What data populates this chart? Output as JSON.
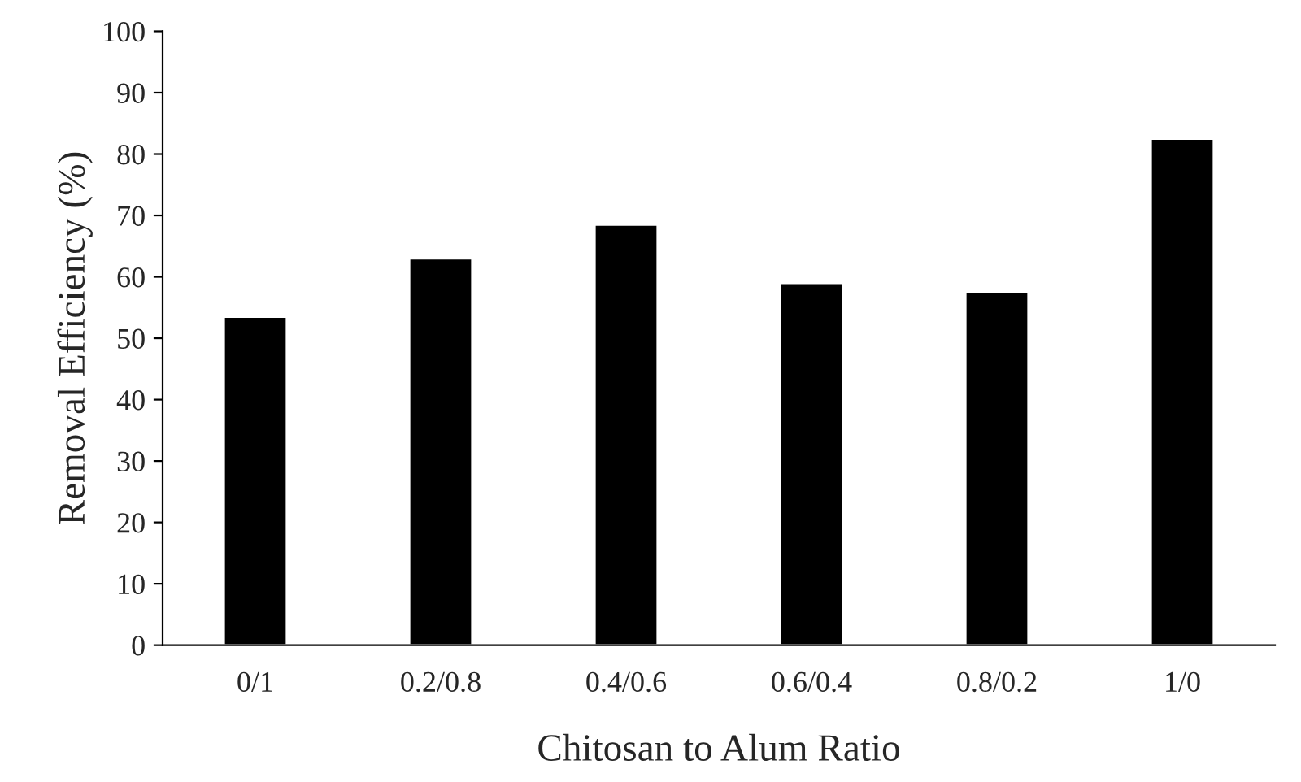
{
  "chart_data": {
    "type": "bar",
    "xlabel": "Chitosan to Alum Ratio",
    "ylabel": "Removal Efficiency (%)",
    "categories": [
      "0/1",
      "0.2/0.8",
      "0.4/0.6",
      "0.6/0.4",
      "0.8/0.2",
      "1/0"
    ],
    "values": [
      53.5,
      63,
      68.5,
      59,
      57.5,
      82.5
    ],
    "color": "#000000",
    "ylim": [
      0,
      100
    ],
    "yticks": [
      0,
      10,
      20,
      30,
      40,
      50,
      60,
      70,
      80,
      90,
      100
    ],
    "grid": false
  }
}
